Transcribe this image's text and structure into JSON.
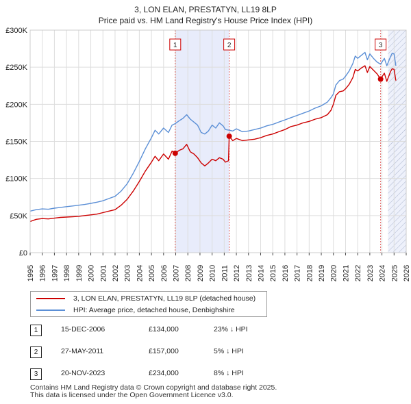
{
  "chart_data": {
    "type": "line",
    "title": "3, LON ELAN, PRESTATYN, LL19 8LP",
    "subtitle": "Price paid vs. HM Land Registry's House Price Index (HPI)",
    "xlabel": "",
    "ylabel": "",
    "xlim": [
      1995,
      2026
    ],
    "ylim": [
      0,
      300000
    ],
    "grid": true,
    "y_ticks": [
      {
        "value": 0,
        "label": "£0"
      },
      {
        "value": 50000,
        "label": "£50K"
      },
      {
        "value": 100000,
        "label": "£100K"
      },
      {
        "value": 150000,
        "label": "£150K"
      },
      {
        "value": 200000,
        "label": "£200K"
      },
      {
        "value": 250000,
        "label": "£250K"
      },
      {
        "value": 300000,
        "label": "£300K"
      }
    ],
    "x_ticks": [
      "1995",
      "1996",
      "1997",
      "1998",
      "1999",
      "2000",
      "2001",
      "2002",
      "2003",
      "2004",
      "2005",
      "2006",
      "2007",
      "2008",
      "2009",
      "2010",
      "2011",
      "2012",
      "2013",
      "2014",
      "2015",
      "2016",
      "2017",
      "2018",
      "2019",
      "2020",
      "2021",
      "2022",
      "2023",
      "2024",
      "2025",
      "2026"
    ],
    "shaded_regions": [
      {
        "start": 2006.96,
        "end": 2011.4,
        "color": "#e8ecfb"
      },
      {
        "start": 2024.5,
        "end": 2026,
        "hatched": true
      }
    ],
    "series": [
      {
        "name": "3, LON ELAN, PRESTATYN, LL19 8LP (detached house)",
        "color": "#cc0000",
        "points": [
          [
            1995.0,
            42000
          ],
          [
            1995.5,
            45000
          ],
          [
            1996.0,
            46000
          ],
          [
            1996.5,
            45500
          ],
          [
            1997.0,
            46500
          ],
          [
            1997.5,
            47500
          ],
          [
            1998.0,
            48000
          ],
          [
            1998.5,
            48500
          ],
          [
            1999.0,
            49000
          ],
          [
            1999.5,
            50000
          ],
          [
            2000.0,
            51000
          ],
          [
            2000.5,
            52000
          ],
          [
            2001.0,
            54000
          ],
          [
            2001.5,
            56000
          ],
          [
            2002.0,
            58000
          ],
          [
            2002.5,
            64000
          ],
          [
            2003.0,
            72000
          ],
          [
            2003.5,
            83000
          ],
          [
            2004.0,
            96000
          ],
          [
            2004.5,
            110000
          ],
          [
            2005.0,
            122000
          ],
          [
            2005.3,
            130000
          ],
          [
            2005.6,
            124000
          ],
          [
            2006.0,
            133000
          ],
          [
            2006.4,
            126000
          ],
          [
            2006.7,
            137000
          ],
          [
            2006.96,
            134000
          ],
          [
            2007.3,
            138000
          ],
          [
            2007.6,
            140000
          ],
          [
            2007.9,
            146000
          ],
          [
            2008.2,
            136000
          ],
          [
            2008.5,
            133000
          ],
          [
            2008.8,
            128000
          ],
          [
            2009.1,
            121000
          ],
          [
            2009.4,
            117000
          ],
          [
            2009.7,
            121000
          ],
          [
            2010.0,
            126000
          ],
          [
            2010.3,
            124000
          ],
          [
            2010.6,
            128000
          ],
          [
            2010.9,
            126000
          ],
          [
            2011.1,
            122000
          ],
          [
            2011.35,
            124000
          ],
          [
            2011.41,
            157000
          ],
          [
            2011.7,
            151000
          ],
          [
            2012.0,
            154000
          ],
          [
            2012.5,
            151000
          ],
          [
            2013.0,
            152000
          ],
          [
            2013.5,
            153000
          ],
          [
            2014.0,
            155000
          ],
          [
            2014.5,
            158000
          ],
          [
            2015.0,
            160000
          ],
          [
            2015.5,
            163000
          ],
          [
            2016.0,
            166000
          ],
          [
            2016.5,
            170000
          ],
          [
            2017.0,
            172000
          ],
          [
            2017.5,
            175000
          ],
          [
            2018.0,
            177000
          ],
          [
            2018.5,
            180000
          ],
          [
            2019.0,
            182000
          ],
          [
            2019.5,
            186000
          ],
          [
            2019.8,
            192000
          ],
          [
            2020.0,
            200000
          ],
          [
            2020.2,
            212000
          ],
          [
            2020.5,
            217000
          ],
          [
            2020.8,
            218000
          ],
          [
            2021.0,
            221000
          ],
          [
            2021.3,
            227000
          ],
          [
            2021.6,
            236000
          ],
          [
            2021.8,
            247000
          ],
          [
            2022.0,
            245000
          ],
          [
            2022.3,
            249000
          ],
          [
            2022.6,
            252000
          ],
          [
            2022.8,
            243000
          ],
          [
            2023.0,
            251000
          ],
          [
            2023.3,
            246000
          ],
          [
            2023.6,
            241000
          ],
          [
            2023.89,
            234000
          ],
          [
            2024.2,
            242000
          ],
          [
            2024.4,
            231000
          ],
          [
            2024.7,
            244000
          ],
          [
            2024.85,
            248000
          ],
          [
            2025.0,
            247000
          ],
          [
            2025.15,
            232000
          ]
        ]
      },
      {
        "name": "HPI: Average price, detached house, Denbighshire",
        "color": "#5b8fd6",
        "points": [
          [
            1995.0,
            56000
          ],
          [
            1995.5,
            58000
          ],
          [
            1996.0,
            59000
          ],
          [
            1996.5,
            58500
          ],
          [
            1997.0,
            60000
          ],
          [
            1997.5,
            61000
          ],
          [
            1998.0,
            62000
          ],
          [
            1998.5,
            63000
          ],
          [
            1999.0,
            64000
          ],
          [
            1999.5,
            65000
          ],
          [
            2000.0,
            66500
          ],
          [
            2000.5,
            68000
          ],
          [
            2001.0,
            70000
          ],
          [
            2001.5,
            73000
          ],
          [
            2002.0,
            76000
          ],
          [
            2002.5,
            83000
          ],
          [
            2003.0,
            93000
          ],
          [
            2003.5,
            107000
          ],
          [
            2004.0,
            123000
          ],
          [
            2004.5,
            140000
          ],
          [
            2005.0,
            155000
          ],
          [
            2005.3,
            165000
          ],
          [
            2005.6,
            160000
          ],
          [
            2006.0,
            168000
          ],
          [
            2006.4,
            162000
          ],
          [
            2006.7,
            172000
          ],
          [
            2006.96,
            174000
          ],
          [
            2007.3,
            178000
          ],
          [
            2007.6,
            181000
          ],
          [
            2007.9,
            186000
          ],
          [
            2008.2,
            180000
          ],
          [
            2008.5,
            176000
          ],
          [
            2008.8,
            172000
          ],
          [
            2009.1,
            162000
          ],
          [
            2009.4,
            160000
          ],
          [
            2009.7,
            164000
          ],
          [
            2010.0,
            172000
          ],
          [
            2010.3,
            168000
          ],
          [
            2010.6,
            175000
          ],
          [
            2010.9,
            171000
          ],
          [
            2011.1,
            166000
          ],
          [
            2011.41,
            165000
          ],
          [
            2011.7,
            164000
          ],
          [
            2012.0,
            167000
          ],
          [
            2012.5,
            163000
          ],
          [
            2013.0,
            164000
          ],
          [
            2013.5,
            166000
          ],
          [
            2014.0,
            168000
          ],
          [
            2014.5,
            171000
          ],
          [
            2015.0,
            173000
          ],
          [
            2015.5,
            176000
          ],
          [
            2016.0,
            179000
          ],
          [
            2016.5,
            182000
          ],
          [
            2017.0,
            185000
          ],
          [
            2017.5,
            188000
          ],
          [
            2018.0,
            191000
          ],
          [
            2018.5,
            195000
          ],
          [
            2019.0,
            198000
          ],
          [
            2019.5,
            203000
          ],
          [
            2019.8,
            209000
          ],
          [
            2020.0,
            214000
          ],
          [
            2020.2,
            226000
          ],
          [
            2020.5,
            232000
          ],
          [
            2020.8,
            234000
          ],
          [
            2021.0,
            238000
          ],
          [
            2021.3,
            245000
          ],
          [
            2021.6,
            255000
          ],
          [
            2021.8,
            265000
          ],
          [
            2022.0,
            262000
          ],
          [
            2022.3,
            266000
          ],
          [
            2022.6,
            270000
          ],
          [
            2022.8,
            260000
          ],
          [
            2023.0,
            268000
          ],
          [
            2023.3,
            262000
          ],
          [
            2023.6,
            257000
          ],
          [
            2023.89,
            254000
          ],
          [
            2024.2,
            262000
          ],
          [
            2024.4,
            252000
          ],
          [
            2024.7,
            264000
          ],
          [
            2024.85,
            269000
          ],
          [
            2025.0,
            268000
          ],
          [
            2025.15,
            252000
          ]
        ]
      }
    ],
    "sales": [
      {
        "label": "1",
        "date": "15-DEC-2006",
        "x": 2006.96,
        "price": 134000,
        "price_text": "£134,000",
        "hpi_text": "23% ↓ HPI"
      },
      {
        "label": "2",
        "date": "27-MAY-2011",
        "x": 2011.41,
        "price": 157000,
        "price_text": "£157,000",
        "hpi_text": "5% ↓ HPI"
      },
      {
        "label": "3",
        "date": "20-NOV-2023",
        "x": 2023.89,
        "price": 234000,
        "price_text": "£234,000",
        "hpi_text": "8% ↓ HPI"
      }
    ]
  },
  "legend": {
    "entries": [
      {
        "label": "3, LON ELAN, PRESTATYN, LL19 8LP (detached house)",
        "color": "#cc0000"
      },
      {
        "label": "HPI: Average price, detached house, Denbighshire",
        "color": "#5b8fd6"
      }
    ]
  },
  "footer": {
    "line1": "Contains HM Land Registry data © Crown copyright and database right 2025.",
    "line2": "This data is licensed under the Open Government Licence v3.0."
  }
}
